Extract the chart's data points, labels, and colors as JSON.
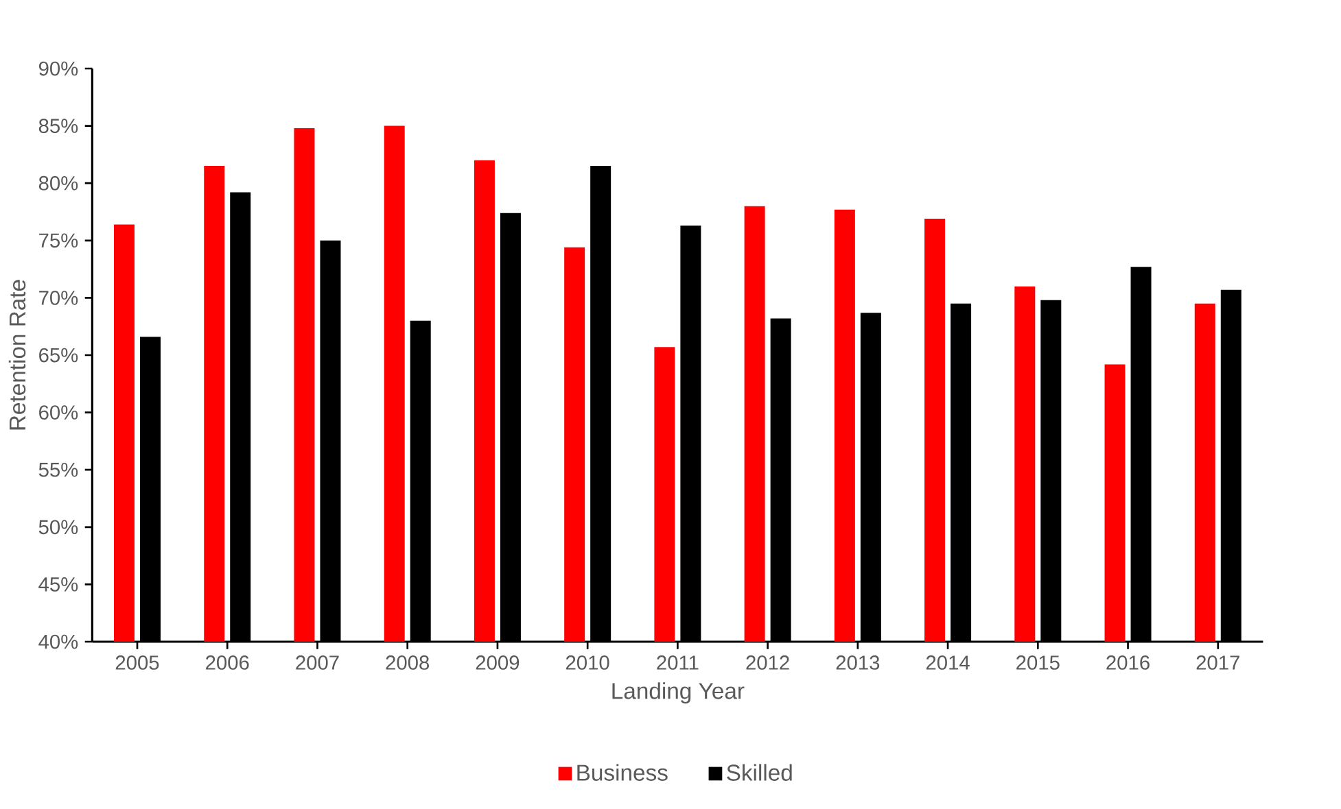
{
  "chart_data": {
    "type": "bar",
    "xlabel": "Landing Year",
    "ylabel": "Retention Rate",
    "categories": [
      "2005",
      "2006",
      "2007",
      "2008",
      "2009",
      "2010",
      "2011",
      "2012",
      "2013",
      "2014",
      "2015",
      "2016",
      "2017"
    ],
    "series": [
      {
        "name": "Business",
        "color": "#ff0000",
        "values": [
          76.4,
          81.5,
          84.8,
          85.0,
          82.0,
          74.4,
          65.7,
          78.0,
          77.7,
          76.9,
          71.0,
          64.2,
          69.5
        ]
      },
      {
        "name": "Skilled",
        "color": "#000000",
        "values": [
          66.6,
          79.2,
          75.0,
          68.0,
          77.4,
          81.5,
          76.3,
          68.2,
          68.7,
          69.5,
          69.8,
          72.7,
          70.7
        ]
      }
    ],
    "ylim": [
      40,
      90
    ],
    "yticks": [
      {
        "value": 40,
        "label": "40%"
      },
      {
        "value": 45,
        "label": "45%"
      },
      {
        "value": 50,
        "label": "50%"
      },
      {
        "value": 55,
        "label": "55%"
      },
      {
        "value": 60,
        "label": "60%"
      },
      {
        "value": 65,
        "label": "65%"
      },
      {
        "value": 70,
        "label": "70%"
      },
      {
        "value": 75,
        "label": "75%"
      },
      {
        "value": 80,
        "label": "80%"
      },
      {
        "value": 85,
        "label": "85%"
      },
      {
        "value": 90,
        "label": "90%"
      }
    ],
    "grid": false,
    "legend": "bottom"
  }
}
